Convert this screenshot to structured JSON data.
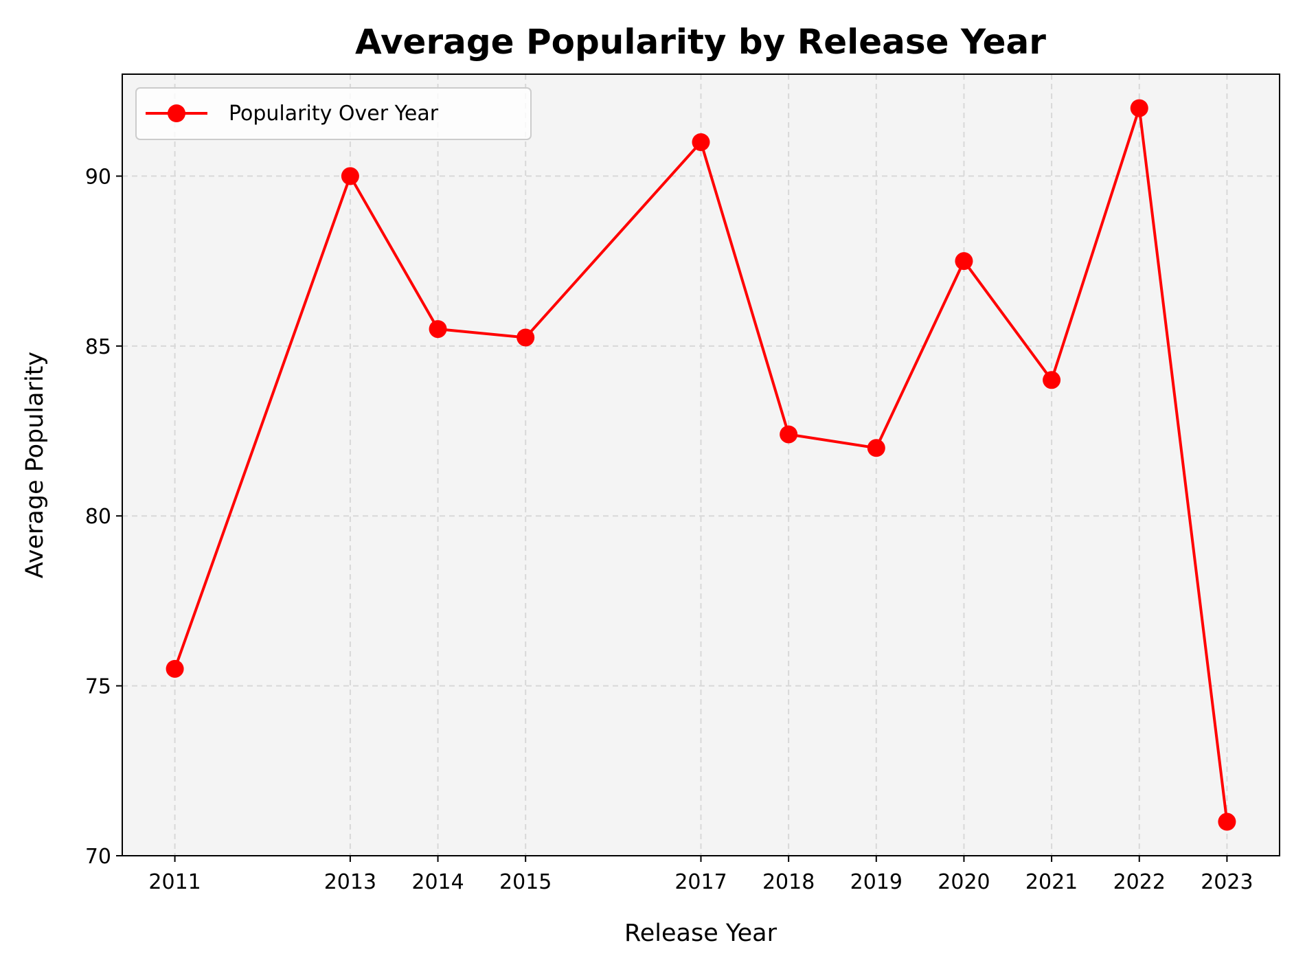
{
  "chart_data": {
    "type": "line",
    "title": "Average Popularity by Release Year",
    "xlabel": "Release Year",
    "ylabel": "Average Popularity",
    "x": [
      2011,
      2013,
      2014,
      2015,
      2017,
      2018,
      2019,
      2020,
      2021,
      2022,
      2023
    ],
    "x_tick_labels": [
      "2011",
      "2013",
      "2014",
      "2015",
      "2017",
      "2018",
      "2019",
      "2020",
      "2021",
      "2022",
      "2023"
    ],
    "y_ticks": [
      70,
      75,
      80,
      85,
      90
    ],
    "y_tick_labels": [
      "70",
      "75",
      "80",
      "85",
      "90"
    ],
    "xlim": [
      2010.4,
      2023.6
    ],
    "ylim": [
      70,
      93
    ],
    "grid": true,
    "legend_position": "top-left",
    "series": [
      {
        "name": "Popularity Over Year",
        "color": "#ff0000",
        "marker": "circle",
        "values": [
          75.5,
          90.0,
          85.5,
          85.25,
          91.0,
          82.4,
          82.0,
          87.5,
          84.0,
          92.0,
          71.0
        ]
      }
    ],
    "background_color": "#f4f4f4"
  }
}
